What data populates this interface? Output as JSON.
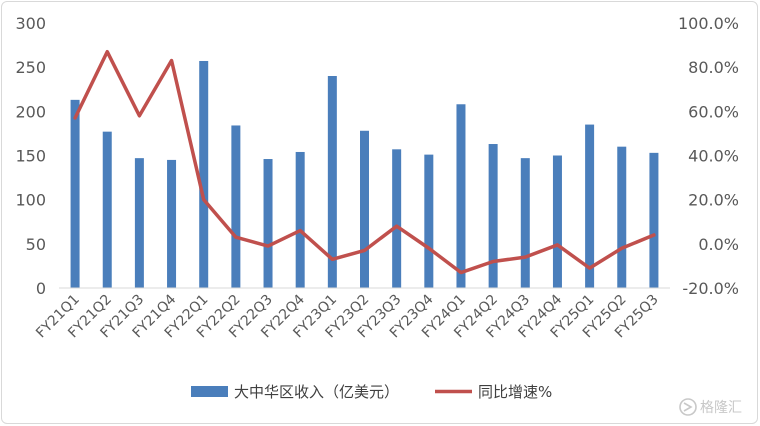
{
  "chart_data": {
    "type": "bar+line",
    "categories": [
      "FY21Q1",
      "FY21Q2",
      "FY21Q3",
      "FY21Q4",
      "FY22Q1",
      "FY22Q2",
      "FY22Q3",
      "FY22Q4",
      "FY23Q1",
      "FY23Q2",
      "FY23Q3",
      "FY23Q4",
      "FY24Q1",
      "FY24Q2",
      "FY24Q3",
      "FY24Q4",
      "FY25Q1",
      "FY25Q2",
      "FY25Q3"
    ],
    "series": [
      {
        "name": "大中华区收入（亿美元）",
        "type": "bar",
        "axis": "left",
        "color": "#4a7ebb",
        "values": [
          213,
          177,
          147,
          145,
          257,
          184,
          146,
          154,
          240,
          178,
          157,
          151,
          208,
          163,
          147,
          150,
          185,
          160,
          153
        ]
      },
      {
        "name": "同比增速%",
        "type": "line",
        "axis": "right",
        "color": "#c0504d",
        "values": [
          57,
          87,
          58,
          83,
          20,
          3,
          -1,
          6,
          -7,
          -3,
          8,
          -2,
          -13,
          -8,
          -6,
          -0.5,
          -11,
          -2,
          4
        ]
      }
    ],
    "left_axis": {
      "min": 0,
      "max": 300,
      "ticks": [
        "0",
        "50",
        "100",
        "150",
        "200",
        "250",
        "300"
      ]
    },
    "right_axis": {
      "min": -20,
      "max": 100,
      "ticks": [
        "-20.0%",
        "0.0%",
        "20.0%",
        "40.0%",
        "60.0%",
        "80.0%",
        "100.0%"
      ]
    },
    "legend_position": "bottom",
    "grid": false
  },
  "watermark": {
    "text": "格隆汇",
    "icon": "gelonghui-logo-icon"
  }
}
